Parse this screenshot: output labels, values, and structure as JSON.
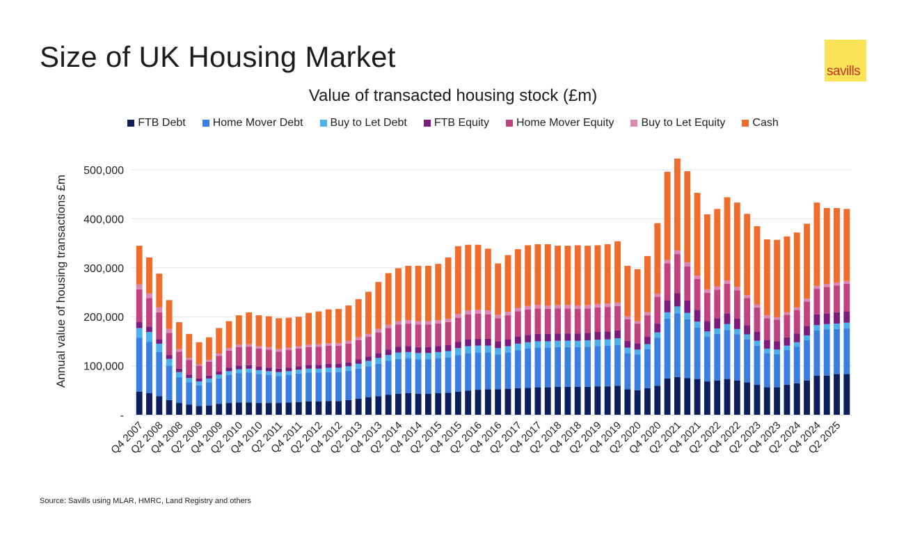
{
  "header": {
    "title": "Size of UK Housing Market",
    "logo_text": "savills",
    "logo_bg": "#fbe358",
    "logo_fg": "#c8322c"
  },
  "footer": {
    "source": "Source: Savills using MLAR, HMRC, Land Registry and others"
  },
  "chart_data": {
    "type": "bar",
    "stacked": true,
    "title": "Value of transacted housing stock (£m)",
    "xlabel": "",
    "ylabel": "Annual value of housing transactions £m",
    "ylim": [
      0,
      500000
    ],
    "yticks": [
      0,
      100000,
      200000,
      300000,
      400000,
      500000
    ],
    "ytick_labels": [
      "-",
      "100,000",
      "200,000",
      "300,000",
      "400,000",
      "500,000"
    ],
    "grid": true,
    "legend_position": "top-center",
    "categories": [
      "Q4 2007",
      "Q1 2008",
      "Q2 2008",
      "Q3 2008",
      "Q4 2008",
      "Q1 2009",
      "Q2 2009",
      "Q3 2009",
      "Q4 2009",
      "Q1 2010",
      "Q2 2010",
      "Q3 2010",
      "Q4 2010",
      "Q1 2011",
      "Q2 2011",
      "Q3 2011",
      "Q4 2011",
      "Q1 2012",
      "Q2 2012",
      "Q3 2012",
      "Q4 2012",
      "Q1 2013",
      "Q2 2013",
      "Q3 2013",
      "Q4 2013",
      "Q1 2014",
      "Q2 2014",
      "Q3 2014",
      "Q4 2014",
      "Q1 2015",
      "Q2 2015",
      "Q3 2015",
      "Q4 2015",
      "Q1 2016",
      "Q2 2016",
      "Q3 2016",
      "Q4 2016",
      "Q1 2017",
      "Q2 2017",
      "Q3 2017",
      "Q4 2017",
      "Q1 2018",
      "Q2 2018",
      "Q3 2018",
      "Q4 2018",
      "Q1 2019",
      "Q2 2019",
      "Q3 2019",
      "Q4 2019",
      "Q1 2020",
      "Q2 2020",
      "Q3 2020",
      "Q4 2020",
      "Q1 2021",
      "Q2 2021",
      "Q3 2021",
      "Q4 2021",
      "Q1 2022",
      "Q2 2022",
      "Q3 2022",
      "Q4 2022",
      "Q1 2023",
      "Q2 2023",
      "Q3 2023",
      "Q4 2023",
      "Q1 2024",
      "Q2 2024",
      "Q3 2024",
      "Q4 2024",
      "Q1 2025",
      "Q2 2025",
      "Q3 2025"
    ],
    "tick_labels_shown": [
      "Q4 2007",
      "Q2 2008",
      "Q4 2008",
      "Q2 2009",
      "Q4 2009",
      "Q2 2010",
      "Q4 2010",
      "Q2 2011",
      "Q4 2011",
      "Q2 2012",
      "Q4 2012",
      "Q2 2013",
      "Q4 2013",
      "Q2 2014",
      "Q4 2014",
      "Q2 2015",
      "Q4 2015",
      "Q2 2016",
      "Q4 2016",
      "Q2 2017",
      "Q4 2017",
      "Q2 2018",
      "Q4 2018",
      "Q2 2019",
      "Q4 2019",
      "Q2 2020",
      "Q4 2020",
      "Q2 2021",
      "Q4 2021",
      "Q2 2022",
      "Q4 2022",
      "Q2 2023",
      "Q4 2023",
      "Q2 2024",
      "Q4 2024",
      "Q2 2025"
    ],
    "series": [
      {
        "name": "FTB Debt",
        "color": "#0c1f5c",
        "values": [
          47000,
          44000,
          38000,
          30000,
          24000,
          21000,
          18000,
          19000,
          22000,
          24000,
          25000,
          25000,
          24000,
          24000,
          24000,
          25000,
          26000,
          27000,
          27000,
          28000,
          28000,
          30000,
          33000,
          36000,
          38000,
          41000,
          43000,
          44000,
          43000,
          43000,
          44000,
          45000,
          47000,
          49000,
          51000,
          52000,
          52000,
          53000,
          54000,
          55000,
          56000,
          56000,
          57000,
          57000,
          57000,
          57000,
          58000,
          58000,
          59000,
          52000,
          50000,
          54000,
          59000,
          74000,
          77000,
          75000,
          73000,
          68000,
          70000,
          73000,
          70000,
          66000,
          61000,
          56000,
          56000,
          61000,
          64000,
          70000,
          80000,
          80000,
          83000,
          83000
        ]
      },
      {
        "name": "Home Mover Debt",
        "color": "#3a7fe0",
        "values": [
          110000,
          105000,
          90000,
          70000,
          52000,
          45000,
          42000,
          47000,
          52000,
          57000,
          60000,
          61000,
          59000,
          57000,
          55000,
          56000,
          58000,
          59000,
          59000,
          59000,
          59000,
          60000,
          61000,
          63000,
          66000,
          69000,
          71000,
          71000,
          70000,
          70000,
          71000,
          72000,
          75000,
          77000,
          76000,
          75000,
          71000,
          74000,
          78000,
          80000,
          81000,
          81000,
          81000,
          81000,
          81000,
          82000,
          82000,
          83000,
          83000,
          74000,
          73000,
          80000,
          98000,
          122000,
          130000,
          120000,
          105000,
          91000,
          95000,
          100000,
          94000,
          88000,
          80000,
          70000,
          68000,
          71000,
          75000,
          82000,
          92000,
          94000,
          92000,
          93000
        ]
      },
      {
        "name": "Buy to Let Debt",
        "color": "#4bb0ec",
        "values": [
          20000,
          20000,
          17000,
          14000,
          11000,
          9000,
          8000,
          8000,
          8000,
          8000,
          8000,
          8000,
          8000,
          8000,
          8000,
          8000,
          8000,
          8000,
          8000,
          9000,
          9000,
          9000,
          10000,
          11000,
          12000,
          12000,
          13000,
          13000,
          13000,
          13000,
          13000,
          13000,
          14000,
          14000,
          14000,
          14000,
          13000,
          13000,
          13000,
          13000,
          13000,
          13000,
          13000,
          13000,
          13000,
          13000,
          13000,
          13000,
          14000,
          11000,
          10000,
          10000,
          11000,
          13000,
          14000,
          13000,
          12000,
          11000,
          11000,
          12000,
          11000,
          10000,
          10000,
          9000,
          9000,
          9000,
          9000,
          10000,
          11000,
          11000,
          11000,
          12000
        ]
      },
      {
        "name": "FTB Equity",
        "color": "#7b1c7c",
        "values": [
          12000,
          11000,
          9000,
          8000,
          7000,
          7000,
          6000,
          6000,
          6000,
          7000,
          7000,
          7000,
          7000,
          7000,
          7000,
          7000,
          7000,
          8000,
          8000,
          8000,
          8000,
          8000,
          9000,
          9000,
          10000,
          11000,
          12000,
          12000,
          12000,
          12000,
          12000,
          12000,
          13000,
          14000,
          14000,
          14000,
          14000,
          14000,
          15000,
          15000,
          15000,
          15000,
          15000,
          15000,
          15000,
          15000,
          16000,
          16000,
          16000,
          14000,
          13000,
          15000,
          18000,
          25000,
          27000,
          25000,
          24000,
          21000,
          21000,
          22000,
          21000,
          19000,
          18000,
          17000,
          17000,
          17000,
          18000,
          19000,
          22000,
          22000,
          23000,
          23000
        ]
      },
      {
        "name": "Home Mover Equity",
        "color": "#c0427f",
        "values": [
          67000,
          58000,
          55000,
          45000,
          35000,
          30000,
          26000,
          28000,
          32000,
          35000,
          38000,
          38000,
          37000,
          37000,
          35000,
          36000,
          36000,
          36000,
          37000,
          37000,
          37000,
          38000,
          39000,
          40000,
          42000,
          44000,
          45000,
          46000,
          46000,
          46000,
          46000,
          47000,
          49000,
          51000,
          51000,
          50000,
          47000,
          49000,
          51000,
          52000,
          52000,
          51000,
          51000,
          51000,
          50000,
          50000,
          50000,
          50000,
          50000,
          44000,
          40000,
          44000,
          55000,
          75000,
          80000,
          70000,
          63000,
          58000,
          58000,
          60000,
          58000,
          55000,
          50000,
          45000,
          44000,
          46000,
          48000,
          50000,
          52000,
          54000,
          55000,
          56000
        ]
      },
      {
        "name": "Buy to Let Equity",
        "color": "#d987b5",
        "values": [
          10000,
          10000,
          10000,
          8000,
          5000,
          4000,
          3000,
          4000,
          5000,
          5000,
          5000,
          5000,
          5000,
          5000,
          5000,
          5000,
          5000,
          5000,
          5000,
          5000,
          5000,
          6000,
          6000,
          6000,
          7000,
          7000,
          7000,
          7000,
          7000,
          7000,
          7000,
          7000,
          8000,
          8000,
          8000,
          8000,
          7000,
          7000,
          7000,
          7000,
          7000,
          7000,
          7000,
          7000,
          7000,
          7000,
          7000,
          7000,
          7000,
          6000,
          5000,
          6000,
          6000,
          7000,
          8000,
          8000,
          7000,
          7000,
          7000,
          7000,
          7000,
          6000,
          6000,
          6000,
          5000,
          5000,
          5000,
          6000,
          6000,
          6000,
          6000,
          6000
        ]
      },
      {
        "name": "Cash",
        "color": "#ee6c2c",
        "values": [
          79000,
          73000,
          69000,
          59000,
          55000,
          49000,
          45000,
          46000,
          52000,
          55000,
          60000,
          65000,
          63000,
          63000,
          63000,
          61000,
          60000,
          65000,
          67000,
          69000,
          70000,
          72000,
          78000,
          86000,
          96000,
          105000,
          108000,
          111000,
          113000,
          113000,
          115000,
          125000,
          138000,
          134000,
          133000,
          126000,
          105000,
          116000,
          120000,
          124000,
          124000,
          125000,
          121000,
          121000,
          123000,
          121000,
          120000,
          121000,
          125000,
          103000,
          106000,
          115000,
          144000,
          180000,
          187000,
          186000,
          169000,
          153000,
          158000,
          170000,
          172000,
          166000,
          160000,
          155000,
          158000,
          155000,
          153000,
          153000,
          170000,
          155000,
          152000,
          147000
        ]
      }
    ]
  }
}
